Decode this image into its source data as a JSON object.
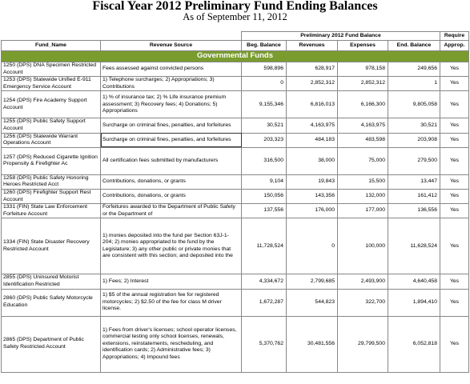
{
  "title": "Fiscal Year 2012 Preliminary Fund Ending Balances",
  "subtitle": "As of September 11, 2012",
  "header": {
    "group": "Preliminary 2012 Fund Balance",
    "require_top": "Require",
    "fund_name": "Fund_Name",
    "revenue_source": "Revenue Source",
    "beg": "Beg. Balance",
    "revenues": "Revenues",
    "expenses": "Expenses",
    "end": "End. Balance",
    "approp": "Approp."
  },
  "section": "Governmental Funds",
  "rows": [
    {
      "fund": "1250 (DPS) DNA Specimen Restricted Account",
      "source": "Fees assessed against convicted persons",
      "beg": "598,896",
      "rev": "628,917",
      "exp": "978,158",
      "end": "249,656",
      "req": "Yes"
    },
    {
      "fund": "1253 (DPS) Statewide Unified E-911 Emergency Service Account",
      "source": "1) Telephone surcharges; 2) Appropriations; 3) Contributions",
      "beg": "0",
      "rev": "2,852,312",
      "exp": "2,852,312",
      "end": "1",
      "req": "Yes"
    },
    {
      "fund": "1254 (DPS) Fire Academy Support Account",
      "source": "1) % of insurance tax; 2) % Life insurance premium assessment; 3) Recovery fees; 4) Donations; 5) Appropriations",
      "beg": "9,155,346",
      "rev": "6,816,013",
      "exp": "6,166,300",
      "end": "9,805,058",
      "req": "Yes"
    },
    {
      "fund": "1255 (DPS) Public Safety Support Account",
      "source": "Surcharge on criminal fines, penalties, and forfeitures",
      "beg": "30,521",
      "rev": "4,163,975",
      "exp": "4,163,975",
      "end": "30,521",
      "req": "Yes"
    },
    {
      "fund": "1256 (DPS) Statewide Warrant Operations Account",
      "source": "Surcharge on criminal fines, penalties, and forfeitures",
      "beg": "203,323",
      "rev": "484,183",
      "exp": "483,598",
      "end": "203,908",
      "req": "Yes"
    },
    {
      "fund": "1257 (DPS) Reduced Cigarette Ignition Propensity & Firefighter Ac",
      "source": "All certification fees submitted by manufacturers",
      "beg": "316,500",
      "rev": "38,000",
      "exp": "75,000",
      "end": "279,500",
      "req": "Yes"
    },
    {
      "fund": "1258 (DPS) Public Safety Honoring Heroes Restricted Acct",
      "source": "Contributions, donations, or grants",
      "beg": "9,104",
      "rev": "19,843",
      "exp": "15,500",
      "end": "13,447",
      "req": "Yes"
    },
    {
      "fund": "1260 (DPS) Firefighter Support Rest Account",
      "source": "Contributions, donations, or grants",
      "beg": "150,056",
      "rev": "143,356",
      "exp": "132,000",
      "end": "161,412",
      "req": "Yes"
    },
    {
      "fund": "1331 (FIN) State Law Enforcement Forfeiture Account",
      "source": "Forfeitures awarded to the Department of Public Safety or the Department of",
      "beg": "137,556",
      "rev": "176,000",
      "exp": "177,000",
      "end": "136,556",
      "req": "Yes"
    },
    {
      "fund": "1334 (FIN) State Disaster Recovery Restricted Account",
      "source": "1) monies deposited into the fund per Section 63J-1-204; 2) monies appropriated to the fund by the Legislature; 3) any other public or private monies that are consistent with this section; and deposited into the",
      "beg": "11,728,524",
      "rev": "0",
      "exp": "100,000",
      "end": "11,628,524",
      "req": "Yes"
    },
    {
      "fund": "2855 (DPS) Uninsured Motorist Identification Restricted",
      "source": "1) Fees; 2) Interest",
      "beg": "4,334,672",
      "rev": "2,799,685",
      "exp": "2,493,900",
      "end": "4,640,458",
      "req": "Yes"
    },
    {
      "fund": "2860 (DPS) Public Safety Motorcycle Education",
      "source": "1) $5 of the annual registration fee for registered motorcycles; 2) $2.50 of the fee for class M driver license.",
      "beg": "1,672,287",
      "rev": "544,823",
      "exp": "322,700",
      "end": "1,894,410",
      "req": "Yes"
    },
    {
      "fund": "2865 (DPS) Department of Public Safety Restricted Account",
      "source": "1) Fees from driver's licenses; school operator licenses, commercial testing only school licenses, renewals, extensions, reinstatements, rescheduling, and identification cards; 2) Administrative fees; 3) Appropriations; 4) Impound fees",
      "beg": "5,370,762",
      "rev": "30,481,556",
      "exp": "29,799,500",
      "end": "6,052,818",
      "req": "Yes"
    }
  ]
}
